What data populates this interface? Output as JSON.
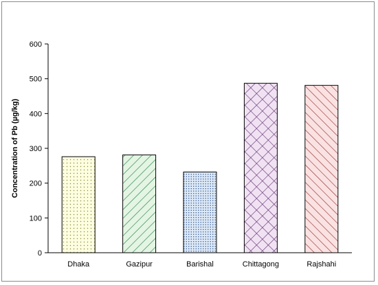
{
  "chart_data": {
    "type": "bar",
    "title": "",
    "xlabel": "",
    "ylabel": "Concentration of Pb (µg/kg)",
    "categories": [
      "Dhaka",
      "Gazipur",
      "Barishal",
      "Chittagong",
      "Rajshahi"
    ],
    "values": [
      276,
      281,
      232,
      487,
      481
    ],
    "ylim": [
      0,
      600
    ],
    "yticks": [
      0,
      100,
      200,
      300,
      400,
      500,
      600
    ],
    "grid": false,
    "legend": "none",
    "bars": [
      {
        "category": "Dhaka",
        "pattern": "dots",
        "fill": "#fdfde0",
        "ink": "#8a8a3a"
      },
      {
        "category": "Gazipur",
        "pattern": "diagonal-down",
        "fill": "#e4f5e4",
        "ink": "#1f7a3a"
      },
      {
        "category": "Barishal",
        "pattern": "dots",
        "fill": "#dde9f7",
        "ink": "#2a4f8a"
      },
      {
        "category": "Chittagong",
        "pattern": "crosshatch",
        "fill": "#f1e2f3",
        "ink": "#5a2a6a"
      },
      {
        "category": "Rajshahi",
        "pattern": "diagonal-up",
        "fill": "#fbe2e2",
        "ink": "#8a2a2a"
      }
    ]
  }
}
